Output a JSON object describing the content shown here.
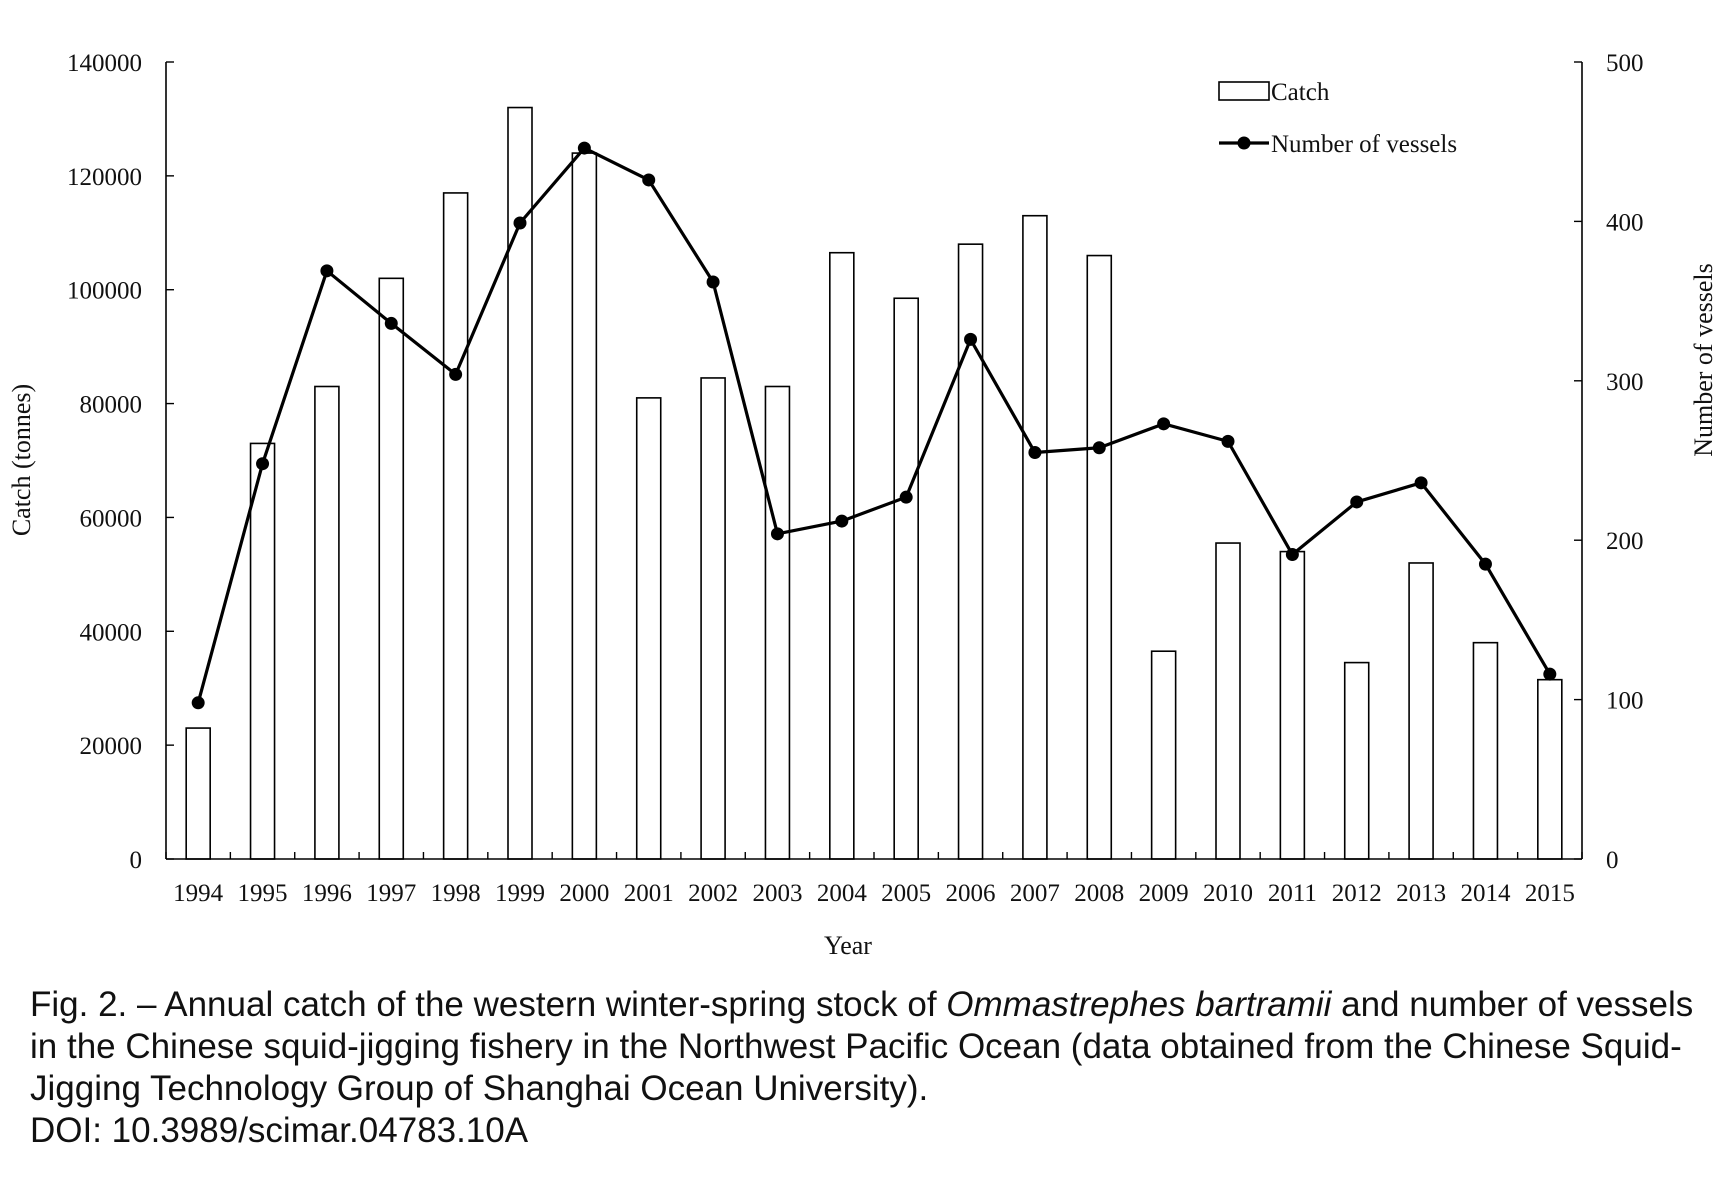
{
  "chart_data": {
    "type": "bar",
    "categories": [
      "1994",
      "1995",
      "1996",
      "1997",
      "1998",
      "1999",
      "2000",
      "2001",
      "2002",
      "2003",
      "2004",
      "2005",
      "2006",
      "2007",
      "2008",
      "2009",
      "2010",
      "2011",
      "2012",
      "2013",
      "2014",
      "2015"
    ],
    "series": [
      {
        "name": "Catch",
        "type": "bar",
        "axis": "left",
        "values": [
          23000,
          73000,
          83000,
          102000,
          117000,
          132000,
          124000,
          81000,
          84500,
          83000,
          106500,
          98500,
          108000,
          113000,
          106000,
          36500,
          55500,
          54000,
          34500,
          52000,
          38000,
          31500
        ]
      },
      {
        "name": "Number of vessels",
        "type": "line",
        "axis": "right",
        "values": [
          98,
          248,
          369,
          336,
          304,
          399,
          446,
          426,
          362,
          204,
          212,
          227,
          326,
          255,
          258,
          273,
          262,
          191,
          224,
          236,
          185,
          116
        ]
      }
    ],
    "xlabel": "Year",
    "ylabel": "Catch (tonnes)",
    "y2label": "Number of vessels",
    "ylim": [
      0,
      140000
    ],
    "y2lim": [
      0,
      500
    ],
    "yticks": [
      "0",
      "20000",
      "40000",
      "60000",
      "80000",
      "100000",
      "120000",
      "140000"
    ],
    "y2ticks": [
      "0",
      "100",
      "200",
      "300",
      "400",
      "500"
    ],
    "grid": false,
    "legend_position": "top-right"
  },
  "caption": {
    "prefix": "Fig. 2. – Annual catch of the western winter-spring stock of ",
    "species": "Ommastrephes bartramii",
    "suffix": " and number of vessels in the Chinese squid-jigging fishery in the Northwest Pacific Ocean (data obtained from the Chinese Squid-Jigging Technology Group of Shanghai Ocean University).",
    "doi": "DOI: 10.3989/scimar.04783.10A"
  }
}
